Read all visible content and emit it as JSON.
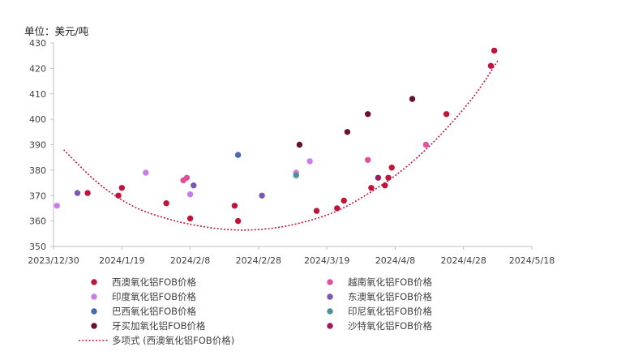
{
  "chart_data": {
    "type": "scatter",
    "unit_label": "单位：美元/吨",
    "x_axis": {
      "type": "date",
      "range": [
        "2023-12-30",
        "2024-05-18"
      ],
      "ticks": [
        "2023/12/30",
        "2024/1/19",
        "2024/2/8",
        "2024/2/28",
        "2024/3/19",
        "2024/4/8",
        "2024/4/28",
        "2024/5/18"
      ]
    },
    "y_axis": {
      "range": [
        350,
        430
      ],
      "ticks": [
        350,
        360,
        370,
        380,
        390,
        400,
        410,
        420,
        430
      ]
    },
    "grid": false,
    "legend_position": "bottom",
    "series": [
      {
        "name": "西澳氧化铝FOB价格",
        "color": "#c0143c",
        "points": [
          {
            "x": "2024-01-09",
            "y": 371
          },
          {
            "x": "2024-01-18",
            "y": 370
          },
          {
            "x": "2024-01-19",
            "y": 373
          },
          {
            "x": "2024-02-01",
            "y": 367
          },
          {
            "x": "2024-02-08",
            "y": 361
          },
          {
            "x": "2024-02-21",
            "y": 366
          },
          {
            "x": "2024-02-22",
            "y": 360
          },
          {
            "x": "2024-03-16",
            "y": 364
          },
          {
            "x": "2024-03-22",
            "y": 365
          },
          {
            "x": "2024-03-24",
            "y": 368
          },
          {
            "x": "2024-04-01",
            "y": 373
          },
          {
            "x": "2024-04-05",
            "y": 374
          },
          {
            "x": "2024-04-06",
            "y": 377
          },
          {
            "x": "2024-04-07",
            "y": 381
          },
          {
            "x": "2024-04-23",
            "y": 402
          },
          {
            "x": "2024-05-06",
            "y": 421
          },
          {
            "x": "2024-05-07",
            "y": 427
          }
        ]
      },
      {
        "name": "越南氧化铝FOB价格",
        "color": "#e0509c",
        "points": [
          {
            "x": "2024-02-06",
            "y": 376
          },
          {
            "x": "2024-02-07",
            "y": 377
          },
          {
            "x": "2024-03-31",
            "y": 384
          },
          {
            "x": "2024-04-17",
            "y": 390
          }
        ]
      },
      {
        "name": "印度氧化铝FOB价格",
        "color": "#c77ee6",
        "points": [
          {
            "x": "2023-12-31",
            "y": 366
          },
          {
            "x": "2024-01-26",
            "y": 379
          },
          {
            "x": "2024-02-08",
            "y": 370.5
          },
          {
            "x": "2024-03-10",
            "y": 379
          },
          {
            "x": "2024-03-14",
            "y": 383.5
          }
        ]
      },
      {
        "name": "东澳氧化铝FOB价格",
        "color": "#7a58b2",
        "points": [
          {
            "x": "2024-01-06",
            "y": 371
          },
          {
            "x": "2024-02-09",
            "y": 374
          },
          {
            "x": "2024-02-29",
            "y": 370
          }
        ]
      },
      {
        "name": "巴西氧化铝FOB价格",
        "color": "#4a68b0",
        "points": [
          {
            "x": "2024-02-22",
            "y": 386
          }
        ]
      },
      {
        "name": "印尼氧化铝FOB价格",
        "color": "#4f8f9c",
        "points": [
          {
            "x": "2024-03-10",
            "y": 378
          }
        ]
      },
      {
        "name": "牙买加氧化铝FOB价格",
        "color": "#6a1228",
        "points": [
          {
            "x": "2024-03-11",
            "y": 390
          },
          {
            "x": "2024-03-25",
            "y": 395
          },
          {
            "x": "2024-03-31",
            "y": 402
          },
          {
            "x": "2024-04-13",
            "y": 408
          }
        ]
      },
      {
        "name": "沙特氧化铝FOB价格",
        "color": "#9b1c5e",
        "points": [
          {
            "x": "2024-04-03",
            "y": 377
          }
        ]
      }
    ],
    "trendline": {
      "name": "多项式 (西澳氧化铝FOB价格)",
      "type": "polynomial",
      "color": "#c0143c",
      "points": [
        {
          "x": "2024-01-02",
          "y": 388
        },
        {
          "x": "2024-01-12",
          "y": 375
        },
        {
          "x": "2024-01-22",
          "y": 366
        },
        {
          "x": "2024-02-01",
          "y": 361
        },
        {
          "x": "2024-02-11",
          "y": 358
        },
        {
          "x": "2024-02-21",
          "y": 356.5
        },
        {
          "x": "2024-03-02",
          "y": 357
        },
        {
          "x": "2024-03-12",
          "y": 359.5
        },
        {
          "x": "2024-03-22",
          "y": 364
        },
        {
          "x": "2024-04-01",
          "y": 371.5
        },
        {
          "x": "2024-04-11",
          "y": 381
        },
        {
          "x": "2024-04-21",
          "y": 393.5
        },
        {
          "x": "2024-05-01",
          "y": 409
        },
        {
          "x": "2024-05-08",
          "y": 423
        }
      ]
    }
  }
}
